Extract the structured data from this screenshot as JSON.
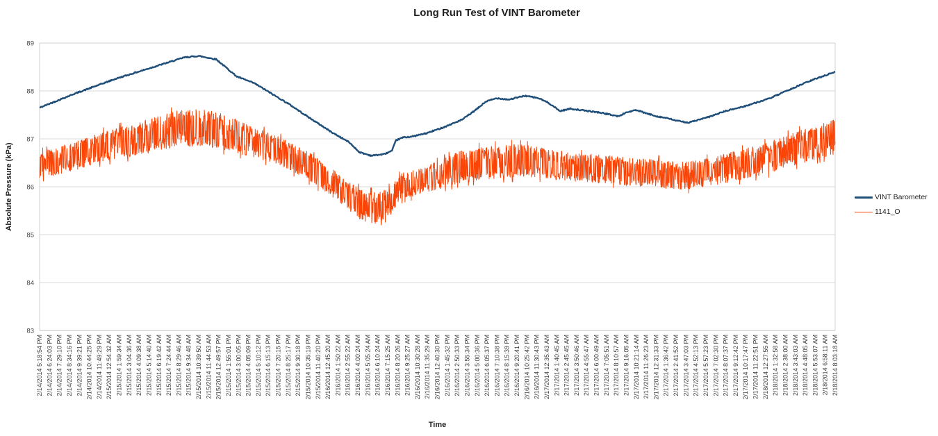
{
  "chart_data": {
    "type": "line",
    "title": "Long Run Test of VINT Barometer",
    "xlabel": "Time",
    "ylabel": "Absolute Pressure (kPa)",
    "ylim": [
      83,
      89
    ],
    "y_ticks": [
      89,
      88,
      87,
      86,
      85,
      84,
      83
    ],
    "grid": "horizontal",
    "legend_position": "right",
    "colors": {
      "grid": "#D9D9D9",
      "plot_border": "#D0D0D0",
      "axis_line": "#BFBFBF",
      "tick_text": "#404040",
      "title_text": "#1F1F1F"
    },
    "x_tick_labels": [
      "2/14/2014 5:18:54 PM",
      "2/14/2014 6:24:03 PM",
      "2/14/2014 7:29:10 PM",
      "2/14/2014 8:34:16 PM",
      "2/14/2014 9:39:21 PM",
      "2/14/2014 10:44:25 PM",
      "2/14/2014 11:49:29 PM",
      "2/15/2014 12:54:32 AM",
      "2/15/2014 1:59:34 AM",
      "2/15/2014 3:04:36 AM",
      "2/15/2014 4:09:38 AM",
      "2/15/2014 5:14:40 AM",
      "2/15/2014 6:19:42 AM",
      "2/15/2014 7:24:44 AM",
      "2/15/2014 8:29:46 AM",
      "2/15/2014 9:34:48 AM",
      "2/15/2014 10:39:50 AM",
      "2/15/2014 11:44:53 AM",
      "2/15/2014 12:49:57 PM",
      "2/15/2014 1:55:01 PM",
      "2/15/2014 3:00:05 PM",
      "2/15/2014 4:05:09 PM",
      "2/15/2014 5:10:12 PM",
      "2/15/2014 6:15:13 PM",
      "2/15/2014 7:20:15 PM",
      "2/15/2014 8:25:17 PM",
      "2/15/2014 9:30:18 PM",
      "2/15/2014 10:35:19 PM",
      "2/15/2014 11:40:20 PM",
      "2/16/2014 12:45:20 AM",
      "2/16/2014 1:50:22 AM",
      "2/16/2014 2:55:22 AM",
      "2/16/2014 4:00:24 AM",
      "2/16/2014 5:05:24 AM",
      "2/16/2014 6:10:24 AM",
      "2/16/2014 7:15:25 AM",
      "2/16/2014 8:20:26 AM",
      "2/16/2014 9:25:27 AM",
      "2/16/2014 10:30:28 AM",
      "2/16/2014 11:35:29 AM",
      "2/16/2014 12:40:30 PM",
      "2/16/2014 1:45:32 PM",
      "2/16/2014 2:50:33 PM",
      "2/16/2014 3:55:34 PM",
      "2/16/2014 5:00:36 PM",
      "2/16/2014 6:05:37 PM",
      "2/16/2014 7:10:38 PM",
      "2/16/2014 8:15:39 PM",
      "2/16/2014 9:20:41 PM",
      "2/16/2014 10:25:42 PM",
      "2/16/2014 11:30:43 PM",
      "2/17/2014 12:35:43 AM",
      "2/17/2014 1:40:45 AM",
      "2/17/2014 2:45:45 AM",
      "2/17/2014 3:50:46 AM",
      "2/17/2014 4:55:47 AM",
      "2/17/2014 6:00:49 AM",
      "2/17/2014 7:05:51 AM",
      "2/17/2014 8:10:57 AM",
      "2/17/2014 9:16:05 AM",
      "2/17/2014 10:21:14 AM",
      "2/17/2014 11:26:23 AM",
      "2/17/2014 12:31:33 PM",
      "2/17/2014 1:36:42 PM",
      "2/17/2014 2:41:52 PM",
      "2/17/2014 3:47:03 PM",
      "2/17/2014 4:52:13 PM",
      "2/17/2014 5:57:23 PM",
      "2/17/2014 7:02:30 PM",
      "2/17/2014 8:07:37 PM",
      "2/17/2014 9:12:42 PM",
      "2/17/2014 10:17:47 PM",
      "2/17/2014 11:22:51 PM",
      "2/18/2014 12:27:55 AM",
      "2/18/2014 1:32:58 AM",
      "2/18/2014 2:38:00 AM",
      "2/18/2014 3:43:03 AM",
      "2/18/2014 4:48:05 AM",
      "2/18/2014 5:53:07 AM",
      "2/18/2014 6:58:11 AM",
      "2/18/2014 8:03:18 AM"
    ],
    "series": [
      {
        "name": "VINT Barometer",
        "color": "#1F4E79",
        "stroke_width": 2.4,
        "style": "smooth",
        "points": [
          [
            0.0,
            87.65
          ],
          [
            0.042,
            87.93
          ],
          [
            0.095,
            88.25
          ],
          [
            0.147,
            88.52
          ],
          [
            0.182,
            88.7
          ],
          [
            0.2,
            88.73
          ],
          [
            0.222,
            88.66
          ],
          [
            0.248,
            88.3
          ],
          [
            0.27,
            88.16
          ],
          [
            0.292,
            87.94
          ],
          [
            0.314,
            87.72
          ],
          [
            0.34,
            87.43
          ],
          [
            0.367,
            87.14
          ],
          [
            0.389,
            86.93
          ],
          [
            0.402,
            86.72
          ],
          [
            0.417,
            86.65
          ],
          [
            0.433,
            86.68
          ],
          [
            0.443,
            86.75
          ],
          [
            0.448,
            86.97
          ],
          [
            0.457,
            87.03
          ],
          [
            0.469,
            87.05
          ],
          [
            0.487,
            87.12
          ],
          [
            0.509,
            87.25
          ],
          [
            0.531,
            87.4
          ],
          [
            0.548,
            87.6
          ],
          [
            0.561,
            87.78
          ],
          [
            0.575,
            87.85
          ],
          [
            0.59,
            87.82
          ],
          [
            0.61,
            87.9
          ],
          [
            0.627,
            87.85
          ],
          [
            0.64,
            87.75
          ],
          [
            0.654,
            87.58
          ],
          [
            0.667,
            87.63
          ],
          [
            0.68,
            87.6
          ],
          [
            0.704,
            87.55
          ],
          [
            0.719,
            87.5
          ],
          [
            0.728,
            87.47
          ],
          [
            0.737,
            87.55
          ],
          [
            0.75,
            87.6
          ],
          [
            0.763,
            87.53
          ],
          [
            0.776,
            87.47
          ],
          [
            0.789,
            87.43
          ],
          [
            0.803,
            87.37
          ],
          [
            0.816,
            87.34
          ],
          [
            0.829,
            87.4
          ],
          [
            0.842,
            87.46
          ],
          [
            0.86,
            87.57
          ],
          [
            0.886,
            87.68
          ],
          [
            0.917,
            87.84
          ],
          [
            0.939,
            88.0
          ],
          [
            0.961,
            88.16
          ],
          [
            0.978,
            88.27
          ],
          [
            0.99,
            88.34
          ],
          [
            1.0,
            88.4
          ]
        ]
      },
      {
        "name": "1141_O",
        "color": "#FB4507",
        "stroke_width": 1,
        "style": "noisy-band",
        "envelope": [
          [
            0.0,
            86.45,
            0.28
          ],
          [
            0.038,
            86.6,
            0.3
          ],
          [
            0.082,
            86.85,
            0.32
          ],
          [
            0.125,
            87.0,
            0.35
          ],
          [
            0.169,
            87.2,
            0.38
          ],
          [
            0.2,
            87.25,
            0.4
          ],
          [
            0.231,
            87.15,
            0.38
          ],
          [
            0.266,
            86.95,
            0.33
          ],
          [
            0.301,
            86.75,
            0.3
          ],
          [
            0.336,
            86.45,
            0.3
          ],
          [
            0.362,
            86.15,
            0.3
          ],
          [
            0.389,
            85.8,
            0.3
          ],
          [
            0.406,
            85.6,
            0.33
          ],
          [
            0.424,
            85.55,
            0.33
          ],
          [
            0.441,
            85.7,
            0.3
          ],
          [
            0.454,
            86.0,
            0.28
          ],
          [
            0.476,
            86.1,
            0.28
          ],
          [
            0.503,
            86.25,
            0.3
          ],
          [
            0.533,
            86.45,
            0.35
          ],
          [
            0.564,
            86.5,
            0.35
          ],
          [
            0.599,
            86.55,
            0.35
          ],
          [
            0.634,
            86.5,
            0.32
          ],
          [
            0.669,
            86.4,
            0.3
          ],
          [
            0.704,
            86.38,
            0.3
          ],
          [
            0.74,
            86.32,
            0.3
          ],
          [
            0.775,
            86.28,
            0.3
          ],
          [
            0.81,
            86.22,
            0.3
          ],
          [
            0.845,
            86.32,
            0.3
          ],
          [
            0.88,
            86.45,
            0.32
          ],
          [
            0.915,
            86.6,
            0.33
          ],
          [
            0.95,
            86.8,
            0.35
          ],
          [
            0.981,
            86.95,
            0.36
          ],
          [
            1.0,
            87.05,
            0.38
          ]
        ]
      }
    ]
  }
}
